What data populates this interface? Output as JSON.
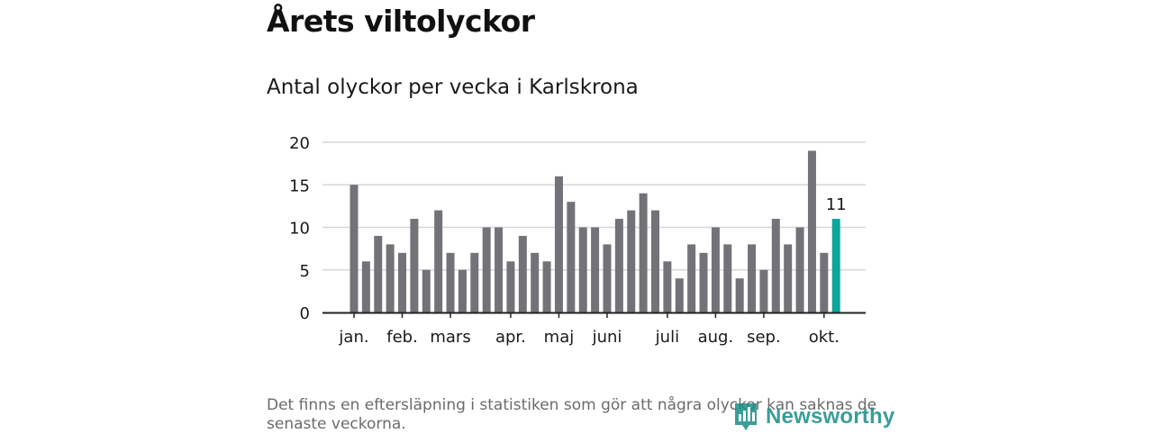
{
  "title": "Årets viltolyckor",
  "subtitle": "Antal olyckor per vecka i Karlskrona",
  "note": "Det finns en eftersläpning i statistiken som gör att några olyckor kan saknas de senaste veckorna.",
  "brand": "Newsworthy",
  "colors": {
    "bar": "#737278",
    "highlight": "#0ca69c",
    "grid": "#d7d7d7",
    "axis": "#222222",
    "text": "#1a1a1a"
  },
  "chart_data": {
    "type": "bar",
    "title": "Antal olyckor per vecka i Karlskrona",
    "xlabel": "",
    "ylabel": "",
    "ylim": [
      0,
      20
    ],
    "yticks": [
      0,
      5,
      10,
      15,
      20
    ],
    "weeks": [
      1,
      2,
      3,
      4,
      5,
      6,
      7,
      8,
      9,
      10,
      11,
      12,
      13,
      14,
      15,
      16,
      17,
      18,
      19,
      20,
      21,
      22,
      23,
      24,
      25,
      26,
      27,
      28,
      29,
      30,
      31,
      32,
      33,
      34,
      35,
      36,
      37,
      38,
      39,
      40,
      41
    ],
    "values": [
      15,
      6,
      9,
      8,
      7,
      11,
      5,
      12,
      7,
      5,
      7,
      10,
      10,
      6,
      9,
      7,
      6,
      16,
      13,
      10,
      10,
      8,
      11,
      12,
      14,
      12,
      6,
      4,
      8,
      7,
      10,
      8,
      4,
      8,
      5,
      11,
      8,
      10,
      19,
      7,
      11
    ],
    "highlight_index": 40,
    "highlight_label": "11",
    "month_ticks": [
      {
        "label": "jan.",
        "week_index": 0
      },
      {
        "label": "feb.",
        "week_index": 4
      },
      {
        "label": "mars",
        "week_index": 8
      },
      {
        "label": "apr.",
        "week_index": 13
      },
      {
        "label": "maj",
        "week_index": 17
      },
      {
        "label": "juni",
        "week_index": 21
      },
      {
        "label": "juli",
        "week_index": 26
      },
      {
        "label": "aug.",
        "week_index": 30
      },
      {
        "label": "sep.",
        "week_index": 34
      },
      {
        "label": "okt.",
        "week_index": 39
      }
    ]
  }
}
